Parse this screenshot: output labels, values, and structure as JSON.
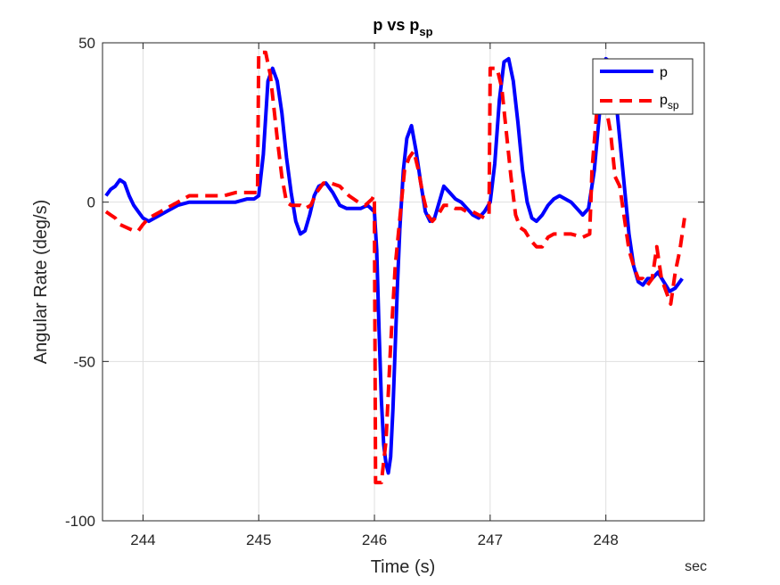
{
  "chart_data": {
    "type": "line",
    "title": "p vs p",
    "title_subscript": "sp",
    "xlabel": "Time (s)",
    "ylabel": "Angular Rate (deg/s)",
    "x_unit_label": "sec",
    "xlim": [
      243.65,
      248.85
    ],
    "ylim": [
      -100,
      50
    ],
    "x_ticks": [
      244,
      245,
      246,
      247,
      248
    ],
    "y_ticks": [
      -100,
      -50,
      0,
      50
    ],
    "grid": true,
    "legend_position": "top-right",
    "series": [
      {
        "name": "p",
        "name_subscript": "",
        "color": "#0000ff",
        "style": "solid",
        "x": [
          243.68,
          243.72,
          243.76,
          243.8,
          243.84,
          243.88,
          243.92,
          243.96,
          244.0,
          244.05,
          244.1,
          244.2,
          244.3,
          244.4,
          244.5,
          244.6,
          244.7,
          244.8,
          244.9,
          244.96,
          245.0,
          245.04,
          245.08,
          245.12,
          245.16,
          245.2,
          245.24,
          245.28,
          245.32,
          245.36,
          245.4,
          245.44,
          245.48,
          245.52,
          245.58,
          245.64,
          245.7,
          245.76,
          245.82,
          245.88,
          245.94,
          246.0,
          246.02,
          246.04,
          246.06,
          246.08,
          246.1,
          246.12,
          246.14,
          246.16,
          246.18,
          246.2,
          246.22,
          246.25,
          246.28,
          246.32,
          246.36,
          246.4,
          246.44,
          246.48,
          246.52,
          246.56,
          246.6,
          246.65,
          246.7,
          246.75,
          246.8,
          246.85,
          246.9,
          246.95,
          247.0,
          247.04,
          247.08,
          247.12,
          247.16,
          247.2,
          247.24,
          247.28,
          247.32,
          247.36,
          247.4,
          247.45,
          247.5,
          247.55,
          247.6,
          247.65,
          247.7,
          247.75,
          247.8,
          247.85,
          247.9,
          247.95,
          248.0,
          248.04,
          248.08,
          248.12,
          248.16,
          248.2,
          248.24,
          248.28,
          248.32,
          248.36,
          248.4,
          248.45,
          248.5,
          248.55,
          248.6,
          248.66
        ],
        "y": [
          2,
          4,
          5,
          7,
          6,
          2,
          -1,
          -3,
          -5,
          -6,
          -5,
          -3,
          -1,
          0,
          0,
          0,
          0,
          0,
          1,
          1,
          2,
          15,
          38,
          42,
          38,
          28,
          14,
          3,
          -6,
          -10,
          -9,
          -4,
          2,
          5,
          6,
          3,
          -1,
          -2,
          -2,
          -2,
          -1,
          -3,
          -15,
          -40,
          -62,
          -76,
          -82,
          -85,
          -80,
          -65,
          -45,
          -25,
          -8,
          10,
          20,
          24,
          16,
          6,
          -3,
          -6,
          -5,
          0,
          5,
          3,
          1,
          0,
          -2,
          -4,
          -5,
          -3,
          0,
          12,
          32,
          44,
          45,
          38,
          25,
          10,
          0,
          -5,
          -6,
          -4,
          -1,
          1,
          2,
          1,
          0,
          -2,
          -4,
          -2,
          10,
          30,
          45,
          44,
          35,
          20,
          5,
          -10,
          -20,
          -25,
          -26,
          -24,
          -24,
          -22,
          -25,
          -28,
          -27,
          -24
        ]
      },
      {
        "name": "p",
        "name_subscript": "sp",
        "color": "#ff0000",
        "style": "dashed",
        "x": [
          243.68,
          243.72,
          243.76,
          243.8,
          243.86,
          243.92,
          243.96,
          244.0,
          244.05,
          244.1,
          244.2,
          244.3,
          244.4,
          244.5,
          244.6,
          244.7,
          244.8,
          244.9,
          244.96,
          244.99,
          245.0,
          245.01,
          245.06,
          245.1,
          245.16,
          245.2,
          245.24,
          245.28,
          245.32,
          245.36,
          245.4,
          245.45,
          245.5,
          245.56,
          245.62,
          245.7,
          245.78,
          245.86,
          245.92,
          245.98,
          245.995,
          246.0,
          246.01,
          246.06,
          246.1,
          246.14,
          246.18,
          246.22,
          246.26,
          246.3,
          246.34,
          246.38,
          246.42,
          246.46,
          246.5,
          246.55,
          246.6,
          246.65,
          246.7,
          246.75,
          246.8,
          246.85,
          246.9,
          246.95,
          246.99,
          247.0,
          247.01,
          247.06,
          247.1,
          247.14,
          247.18,
          247.22,
          247.26,
          247.3,
          247.35,
          247.4,
          247.45,
          247.5,
          247.55,
          247.6,
          247.7,
          247.8,
          247.86,
          247.88,
          247.92,
          247.96,
          248.0,
          248.04,
          248.08,
          248.12,
          248.16,
          248.2,
          248.24,
          248.28,
          248.32,
          248.36,
          248.4,
          248.44,
          248.48,
          248.52,
          248.56,
          248.6,
          248.64,
          248.68
        ],
        "y": [
          -3,
          -4,
          -5,
          -7,
          -8,
          -9,
          -9,
          -7,
          -5,
          -4,
          -2,
          0,
          2,
          2,
          2,
          2,
          3,
          3,
          3,
          3,
          46,
          47,
          47,
          40,
          20,
          8,
          0,
          -1,
          -1,
          -1,
          -2,
          -1,
          3,
          6,
          6,
          5,
          2,
          0,
          -1,
          1,
          2,
          0,
          -88,
          -88,
          -75,
          -45,
          -20,
          -5,
          10,
          14,
          16,
          10,
          2,
          -4,
          -6,
          -4,
          -1,
          -1,
          -2,
          -2,
          -3,
          -3,
          -4,
          -5,
          -4,
          42,
          42,
          42,
          36,
          22,
          8,
          -4,
          -8,
          -9,
          -12,
          -14,
          -14,
          -11,
          -10,
          -10,
          -10,
          -11,
          -10,
          10,
          28,
          31,
          30,
          22,
          8,
          5,
          -5,
          -15,
          -20,
          -24,
          -24,
          -26,
          -24,
          -14,
          -24,
          -28,
          -32,
          -22,
          -15,
          -5
        ]
      }
    ]
  }
}
